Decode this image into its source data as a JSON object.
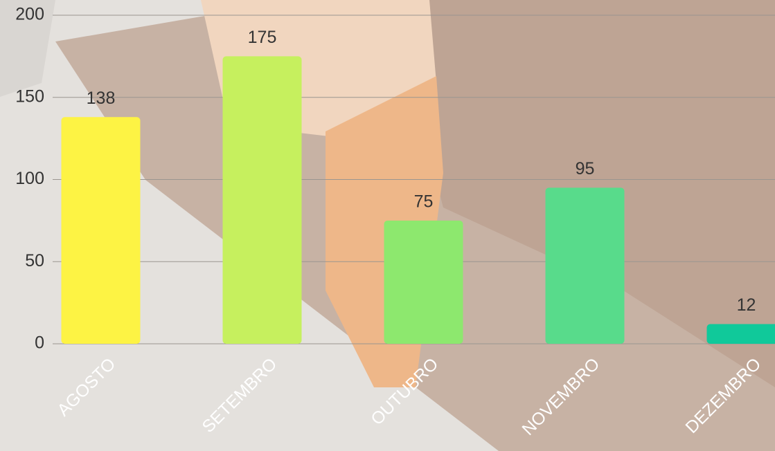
{
  "chart_data": {
    "type": "bar",
    "categories": [
      "AGOSTO",
      "SETEMBRO",
      "OUTUBRO",
      "NOVEMBRO",
      "DEZEMBRO"
    ],
    "values": [
      138,
      175,
      75,
      95,
      12
    ],
    "colors": [
      "#fdf344",
      "#c6f05e",
      "#8de86e",
      "#58db8b",
      "#10c99a"
    ],
    "ylim": [
      0,
      200
    ],
    "yticks": [
      0,
      50,
      100,
      150,
      200
    ],
    "grid": true
  }
}
